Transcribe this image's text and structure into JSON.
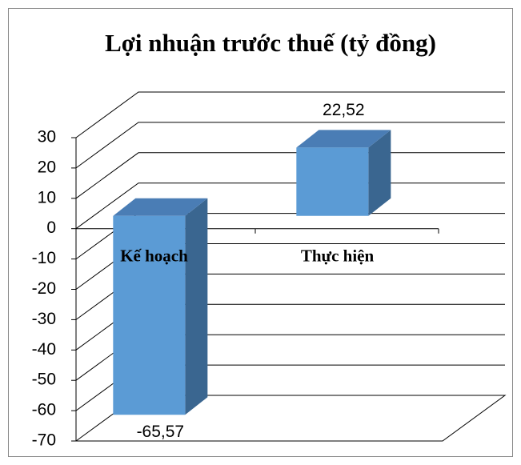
{
  "chart_data": {
    "type": "bar3d",
    "title": "Lợi nhuận trước thuế (tỷ đồng)",
    "categories": [
      "Kế hoạch",
      "Thực hiện"
    ],
    "values": [
      -65.57,
      22.52
    ],
    "value_labels": [
      "-65,57",
      "22,52"
    ],
    "color": "#5b9bd5",
    "ylim": [
      -70,
      30
    ],
    "yticks": [
      30,
      20,
      10,
      0,
      -10,
      -20,
      -30,
      -40,
      -50,
      -60,
      -70
    ],
    "grid": true
  }
}
